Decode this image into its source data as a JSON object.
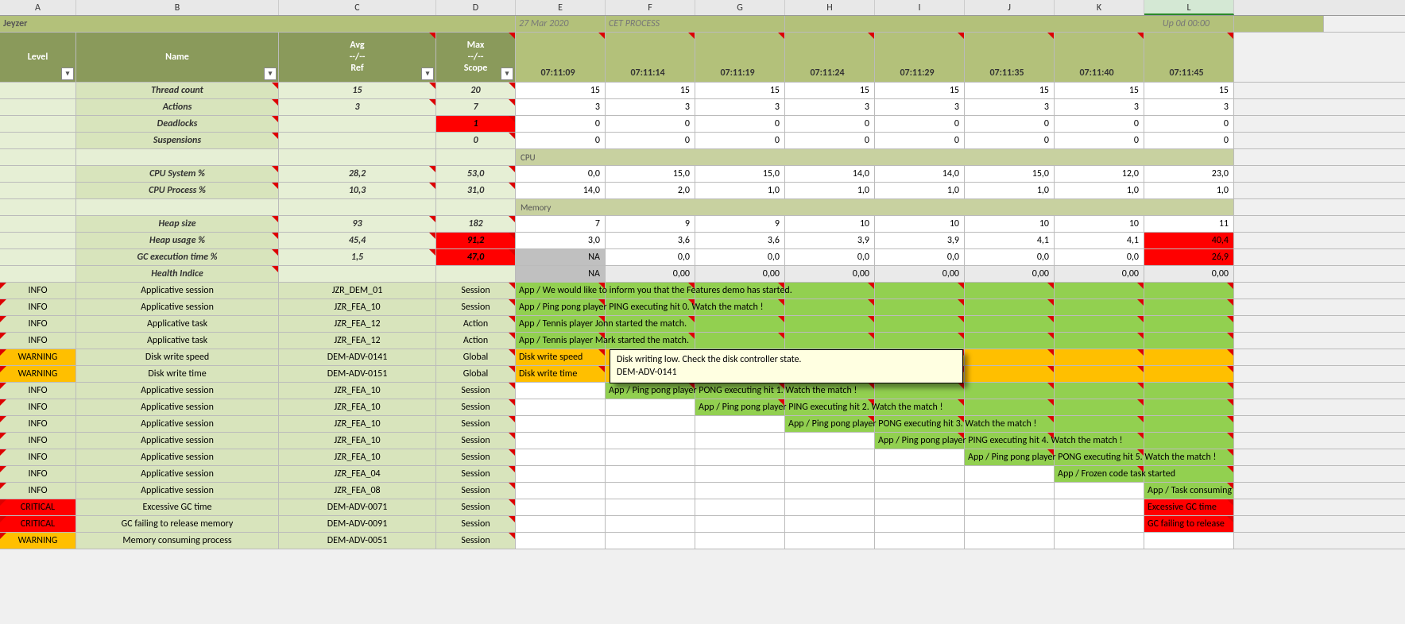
{
  "cols": [
    "A",
    "B",
    "C",
    "D",
    "E",
    "F",
    "G",
    "H",
    "I",
    "J",
    "K",
    "L"
  ],
  "banner": {
    "title": "Jeyzer",
    "date": "27 Mar 2020",
    "proc": "CET PROCESS",
    "uptime": "Up 0d 00:00"
  },
  "hdr": {
    "level": "Level",
    "name": "Name",
    "avg_l1": "Avg",
    "avg_l2": "--/--",
    "avg_l3": "Ref",
    "max_l1": "Max",
    "max_l2": "--/--",
    "max_l3": "Scope",
    "times": [
      "07:11:09",
      "07:11:14",
      "07:11:19",
      "07:11:24",
      "07:11:29",
      "07:11:35",
      "07:11:40",
      "07:11:45"
    ]
  },
  "metrics": [
    {
      "name": "Thread count",
      "avg": "15",
      "max": "20",
      "vals": [
        "15",
        "15",
        "15",
        "15",
        "15",
        "15",
        "15",
        "15"
      ]
    },
    {
      "name": "Actions",
      "avg": "3",
      "max": "7",
      "vals": [
        "3",
        "3",
        "3",
        "3",
        "3",
        "3",
        "3",
        "3"
      ]
    },
    {
      "name": "Deadlocks",
      "avg": "",
      "max": "1",
      "maxRed": true,
      "vals": [
        "0",
        "0",
        "0",
        "0",
        "0",
        "0",
        "0",
        "0"
      ]
    },
    {
      "name": "Suspensions",
      "avg": "",
      "max": "0",
      "vals": [
        "0",
        "0",
        "0",
        "0",
        "0",
        "0",
        "0",
        "0"
      ]
    }
  ],
  "sections": {
    "cpu": "CPU",
    "mem": "Memory"
  },
  "cpu": [
    {
      "name": "CPU System %",
      "avg": "28,2",
      "max": "53,0",
      "vals": [
        "0,0",
        "15,0",
        "15,0",
        "14,0",
        "14,0",
        "15,0",
        "12,0",
        "23,0"
      ]
    },
    {
      "name": "CPU Process %",
      "avg": "10,3",
      "max": "31,0",
      "vals": [
        "14,0",
        "2,0",
        "1,0",
        "1,0",
        "1,0",
        "1,0",
        "1,0",
        "1,0"
      ]
    }
  ],
  "mem": [
    {
      "name": "Heap size",
      "avg": "93",
      "max": "182",
      "vals": [
        "7",
        "9",
        "9",
        "10",
        "10",
        "10",
        "10",
        "11"
      ]
    },
    {
      "name": "Heap usage %",
      "avg": "45,4",
      "max": "91,2",
      "maxRed": true,
      "vals": [
        "3,0",
        "3,6",
        "3,6",
        "3,9",
        "3,9",
        "4,1",
        "4,1",
        "40,4"
      ],
      "redIdx": [
        7
      ]
    },
    {
      "name": "GC execution time %",
      "avg": "1,5",
      "max": "47,0",
      "maxRed": true,
      "vals": [
        "NA",
        "0,0",
        "0,0",
        "0,0",
        "0,0",
        "0,0",
        "0,0",
        "26,9"
      ],
      "naIdx": [
        0
      ],
      "redIdx": [
        7
      ]
    },
    {
      "name": "Health Indice",
      "avg": "",
      "max": "",
      "vals": [
        "NA",
        "0,00",
        "0,00",
        "0,00",
        "0,00",
        "0,00",
        "0,00",
        "0,00"
      ],
      "naIdx": [
        0
      ],
      "grayRow": true
    }
  ],
  "events": [
    {
      "lvl": "INFO",
      "name": "Applicative session",
      "ref": "JZR_DEM_01",
      "scope": "Session",
      "start": 0,
      "len": 8,
      "cls": "green",
      "text": "App / We would like to inform you that the Features demo has started."
    },
    {
      "lvl": "INFO",
      "name": "Applicative session",
      "ref": "JZR_FEA_10",
      "scope": "Session",
      "start": 0,
      "len": 8,
      "cls": "green",
      "text": "App / Ping pong player PING executing hit 0. Watch the match !"
    },
    {
      "lvl": "INFO",
      "name": "Applicative task",
      "ref": "JZR_FEA_12",
      "scope": "Action",
      "start": 0,
      "len": 8,
      "cls": "green",
      "text": "App / Tennis player John started the match."
    },
    {
      "lvl": "INFO",
      "name": "Applicative task",
      "ref": "JZR_FEA_12",
      "scope": "Action",
      "start": 0,
      "len": 8,
      "cls": "green",
      "text": "App / Tennis player Mark started the match."
    },
    {
      "lvl": "WARNING",
      "name": "Disk write speed",
      "ref": "DEM-ADV-0141",
      "scope": "Global",
      "start": 0,
      "len": 8,
      "cls": "orange",
      "text": "Disk write speed"
    },
    {
      "lvl": "WARNING",
      "name": "Disk write time",
      "ref": "DEM-ADV-0151",
      "scope": "Global",
      "start": 0,
      "len": 8,
      "cls": "orange",
      "text": "Disk write time"
    },
    {
      "lvl": "INFO",
      "name": "Applicative session",
      "ref": "JZR_FEA_10",
      "scope": "Session",
      "start": 1,
      "len": 7,
      "cls": "green",
      "text": "App / Ping pong player PONG executing hit 1. Watch the match !"
    },
    {
      "lvl": "INFO",
      "name": "Applicative session",
      "ref": "JZR_FEA_10",
      "scope": "Session",
      "start": 2,
      "len": 6,
      "cls": "green",
      "text": "App / Ping pong player PING executing hit 2. Watch the match !"
    },
    {
      "lvl": "INFO",
      "name": "Applicative session",
      "ref": "JZR_FEA_10",
      "scope": "Session",
      "start": 3,
      "len": 5,
      "cls": "green",
      "text": "App / Ping pong player PONG executing hit 3. Watch the match !"
    },
    {
      "lvl": "INFO",
      "name": "Applicative session",
      "ref": "JZR_FEA_10",
      "scope": "Session",
      "start": 4,
      "len": 4,
      "cls": "green",
      "text": "App / Ping pong player PING executing hit 4. Watch the match !"
    },
    {
      "lvl": "INFO",
      "name": "Applicative session",
      "ref": "JZR_FEA_10",
      "scope": "Session",
      "start": 5,
      "len": 3,
      "cls": "green",
      "text": "App / Ping pong player PONG executing hit 5. Watch the match !"
    },
    {
      "lvl": "INFO",
      "name": "Applicative session",
      "ref": "JZR_FEA_04",
      "scope": "Session",
      "start": 6,
      "len": 2,
      "cls": "green",
      "text": "App / Frozen code task started"
    },
    {
      "lvl": "INFO",
      "name": "Applicative session",
      "ref": "JZR_FEA_08",
      "scope": "Session",
      "start": 7,
      "len": 1,
      "cls": "green",
      "text": "App / Task consuming"
    },
    {
      "lvl": "CRITICAL",
      "name": "Excessive GC time",
      "ref": "DEM-ADV-0071",
      "scope": "Session",
      "start": 7,
      "len": 1,
      "cls": "red",
      "text": "Excessive GC time"
    },
    {
      "lvl": "CRITICAL",
      "name": "GC failing to release memory",
      "ref": "DEM-ADV-0091",
      "scope": "Session",
      "start": 7,
      "len": 1,
      "cls": "red",
      "text": "GC failing to release"
    },
    {
      "lvl": "WARNING",
      "name": "Memory consuming process",
      "ref": "DEM-ADV-0051",
      "scope": "Session",
      "start": -1,
      "len": 0,
      "cls": "",
      "text": ""
    }
  ],
  "tooltip": {
    "l1": "Disk writing low. Check the disk controller state.",
    "l2": "DEM-ADV-0141"
  }
}
